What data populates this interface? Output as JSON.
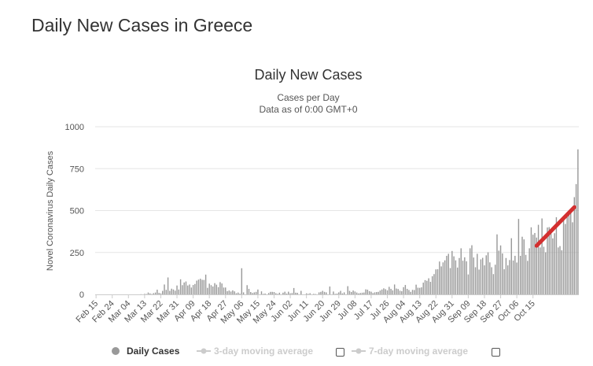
{
  "page": {
    "title": "Daily New Cases in Greece"
  },
  "chart_data": {
    "type": "bar",
    "title": "Daily New Cases",
    "subtitle_lines": [
      "Cases per Day",
      "Data as of 0:00 GMT+0"
    ],
    "ylabel": "Novel Coronavirus Daily Cases",
    "xlabel": "",
    "ylim": [
      0,
      1000
    ],
    "y_ticks": [
      0,
      250,
      500,
      750,
      1000
    ],
    "x_tick_labels": [
      "Feb 15",
      "Feb 24",
      "Mar 04",
      "Mar 13",
      "Mar 22",
      "Mar 31",
      "Apr 09",
      "Apr 18",
      "Apr 27",
      "May 06",
      "May 15",
      "May 24",
      "Jun 02",
      "Jun 11",
      "Jun 20",
      "Jun 29",
      "Jul 08",
      "Jul 17",
      "Jul 26",
      "Aug 04",
      "Aug 13",
      "Aug 22",
      "Aug 31",
      "Sep 09",
      "Sep 18",
      "Sep 27",
      "Oct 06",
      "Oct 15"
    ],
    "tick_every_days": 9,
    "series": [
      {
        "name": "Daily Cases",
        "color": "#999999",
        "values": [
          0,
          0,
          0,
          0,
          0,
          0,
          0,
          0,
          0,
          0,
          0,
          0,
          0,
          0,
          0,
          0,
          0,
          0,
          0,
          0,
          0,
          0,
          0,
          0,
          0,
          1,
          0,
          3,
          2,
          11,
          6,
          2,
          7,
          11,
          28,
          9,
          6,
          21,
          59,
          27,
          101,
          21,
          34,
          29,
          22,
          53,
          29,
          90,
          55,
          71,
          77,
          53,
          59,
          41,
          56,
          62,
          82,
          88,
          93,
          87,
          86,
          118,
          39,
          64,
          55,
          47,
          67,
          58,
          43,
          73,
          65,
          41,
          41,
          19,
          23,
          17,
          24,
          18,
          7,
          11,
          4,
          156,
          12,
          0,
          55,
          33,
          14,
          8,
          12,
          15,
          29,
          0,
          18,
          3,
          5,
          0,
          8,
          15,
          15,
          14,
          7,
          3,
          10,
          0,
          10,
          16,
          5,
          16,
          6,
          8,
          38,
          10,
          9,
          0,
          21,
          0,
          0,
          6,
          3,
          7,
          0,
          3,
          2,
          0,
          12,
          15,
          21,
          15,
          12,
          0,
          47,
          0,
          17,
          3,
          5,
          12,
          21,
          6,
          12,
          0,
          49,
          21,
          14,
          23,
          17,
          11,
          6,
          8,
          10,
          11,
          30,
          28,
          19,
          16,
          8,
          12,
          14,
          15,
          23,
          29,
          36,
          31,
          24,
          45,
          33,
          24,
          59,
          35,
          32,
          22,
          19,
          43,
          56,
          33,
          26,
          15,
          27,
          26,
          58,
          40,
          39,
          42,
          70,
          85,
          81,
          96,
          75,
          108,
          121,
          149,
          150,
          196,
          167,
          191,
          203,
          230,
          242,
          157,
          259,
          227,
          203,
          160,
          217,
          275,
          201,
          221,
          197,
          119,
          275,
          293,
          220,
          162,
          242,
          148,
          209,
          218,
          173,
          233,
          251,
          191,
          162,
          121,
          177,
          358,
          261,
          292,
          244,
          150,
          217,
          173,
          205,
          335,
          202,
          230,
          190,
          450,
          230,
          344,
          328,
          236,
          200,
          275,
          400,
          356,
          366,
          339,
          415,
          280,
          453,
          284,
          251,
          399,
          401,
          368,
          334,
          365,
          460,
          280,
          288,
          263,
          441,
          420,
          465,
          501,
          489,
          430,
          580,
          658,
          865
        ]
      }
    ],
    "legend": {
      "position": "bottom-center",
      "items": [
        {
          "name": "Daily Cases",
          "active": true,
          "color": "#999999"
        },
        {
          "name": "3-day moving average",
          "active": false,
          "color": "#cccccc"
        },
        {
          "name": "7-day moving average",
          "active": false,
          "color": "#cccccc"
        }
      ]
    },
    "annotations": [
      {
        "type": "trend-line",
        "color": "#d32f2f",
        "from": {
          "day_index": 245,
          "value": 290
        },
        "to": {
          "day_index": 266,
          "value": 520
        }
      }
    ]
  }
}
